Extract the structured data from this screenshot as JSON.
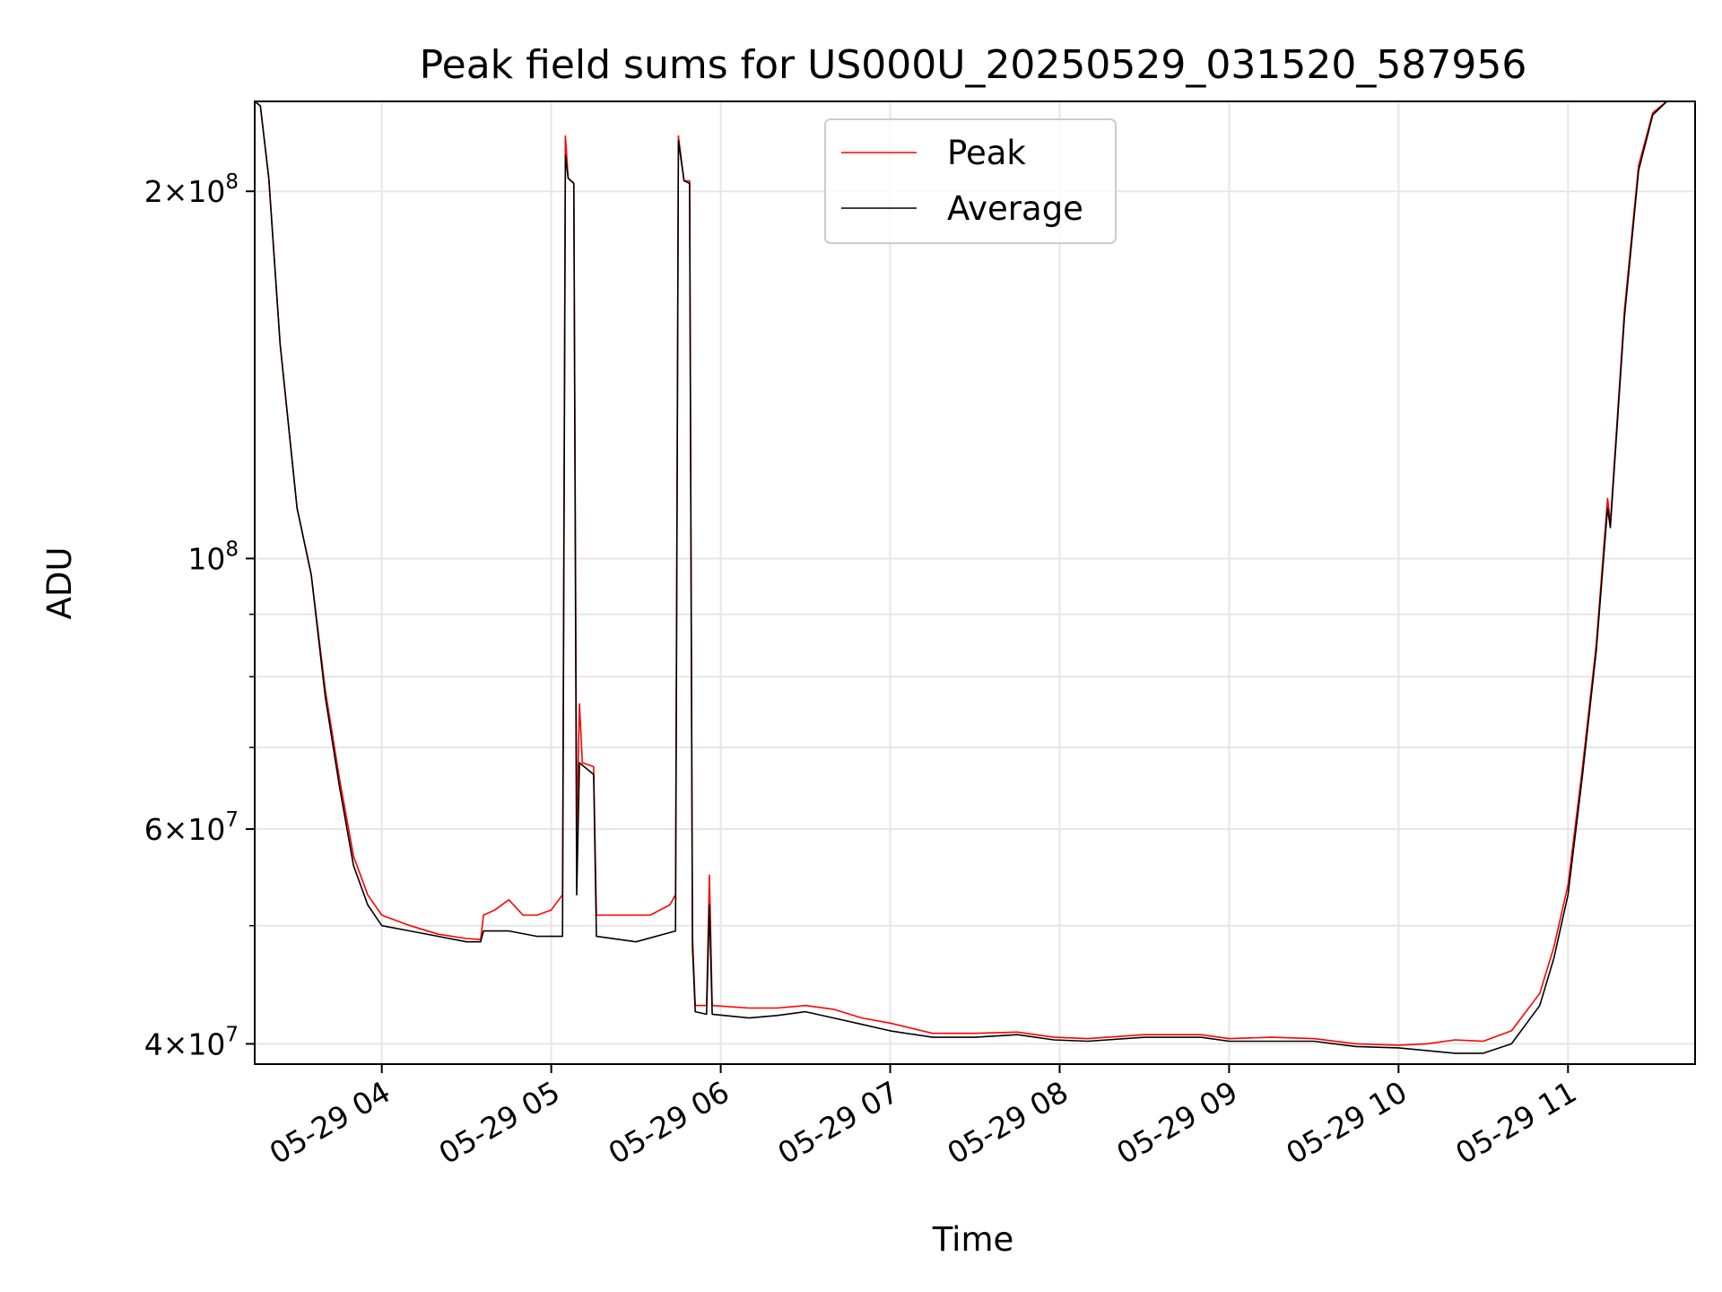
{
  "chart_data": {
    "type": "line",
    "title": "Peak field sums for US000U_20250529_031520_587956",
    "xlabel": "Time",
    "ylabel": "ADU",
    "y_scale": "log",
    "ylim": [
      38500000,
      237000000
    ],
    "xlim": [
      "2025-05-29 03:15",
      "2025-05-29 11:45"
    ],
    "grid": true,
    "legend_position": "top-center",
    "x_ticks": [
      {
        "value": "2025-05-29 04:00",
        "label": "05-29 04"
      },
      {
        "value": "2025-05-29 05:00",
        "label": "05-29 05"
      },
      {
        "value": "2025-05-29 06:00",
        "label": "05-29 06"
      },
      {
        "value": "2025-05-29 07:00",
        "label": "05-29 07"
      },
      {
        "value": "2025-05-29 08:00",
        "label": "05-29 08"
      },
      {
        "value": "2025-05-29 09:00",
        "label": "05-29 09"
      },
      {
        "value": "2025-05-29 10:00",
        "label": "05-29 10"
      },
      {
        "value": "2025-05-29 11:00",
        "label": "05-29 11"
      }
    ],
    "y_ticks": [
      {
        "value": 40000000,
        "mantissa": "4",
        "exponent": "7"
      },
      {
        "value": 60000000,
        "mantissa": "6",
        "exponent": "7"
      },
      {
        "value": 100000000,
        "mantissa": "",
        "exponent": "8"
      },
      {
        "value": 200000000,
        "mantissa": "2",
        "exponent": "8"
      }
    ],
    "y_minor_ticks": [
      50000000,
      70000000,
      80000000,
      90000000
    ],
    "series": [
      {
        "name": "Peak",
        "color": "#ff0000",
        "points": [
          [
            "2025-05-29 03:15",
            237000000
          ],
          [
            "2025-05-29 03:17",
            235000000
          ],
          [
            "2025-05-29 03:20",
            205000000
          ],
          [
            "2025-05-29 03:24",
            150000000
          ],
          [
            "2025-05-29 03:30",
            110000000
          ],
          [
            "2025-05-29 03:35",
            97000000
          ],
          [
            "2025-05-29 03:40",
            78000000
          ],
          [
            "2025-05-29 03:45",
            66000000
          ],
          [
            "2025-05-29 03:50",
            57000000
          ],
          [
            "2025-05-29 03:55",
            53000000
          ],
          [
            "2025-05-29 04:00",
            51000000
          ],
          [
            "2025-05-29 04:10",
            50000000
          ],
          [
            "2025-05-29 04:20",
            49200000
          ],
          [
            "2025-05-29 04:30",
            48800000
          ],
          [
            "2025-05-29 04:35",
            48700000
          ],
          [
            "2025-05-29 04:36",
            51000000
          ],
          [
            "2025-05-29 04:40",
            51500000
          ],
          [
            "2025-05-29 04:45",
            52500000
          ],
          [
            "2025-05-29 04:50",
            51000000
          ],
          [
            "2025-05-29 04:55",
            51000000
          ],
          [
            "2025-05-29 05:00",
            51500000
          ],
          [
            "2025-05-29 05:04",
            53000000
          ],
          [
            "2025-05-29 05:05",
            222000000
          ],
          [
            "2025-05-29 05:06",
            205000000
          ],
          [
            "2025-05-29 05:08",
            203000000
          ],
          [
            "2025-05-29 05:09",
            60000000
          ],
          [
            "2025-05-29 05:10",
            76000000
          ],
          [
            "2025-05-29 05:11",
            68000000
          ],
          [
            "2025-05-29 05:15",
            67500000
          ],
          [
            "2025-05-29 05:16",
            51000000
          ],
          [
            "2025-05-29 05:25",
            51000000
          ],
          [
            "2025-05-29 05:35",
            51000000
          ],
          [
            "2025-05-29 05:42",
            52000000
          ],
          [
            "2025-05-29 05:44",
            53000000
          ],
          [
            "2025-05-29 05:45",
            222000000
          ],
          [
            "2025-05-29 05:47",
            204000000
          ],
          [
            "2025-05-29 05:49",
            204000000
          ],
          [
            "2025-05-29 05:50",
            49000000
          ],
          [
            "2025-05-29 05:51",
            43000000
          ],
          [
            "2025-05-29 05:55",
            43000000
          ],
          [
            "2025-05-29 05:56",
            55000000
          ],
          [
            "2025-05-29 05:57",
            43000000
          ],
          [
            "2025-05-29 06:10",
            42800000
          ],
          [
            "2025-05-29 06:20",
            42800000
          ],
          [
            "2025-05-29 06:30",
            43000000
          ],
          [
            "2025-05-29 06:40",
            42700000
          ],
          [
            "2025-05-29 06:50",
            42000000
          ],
          [
            "2025-05-29 07:00",
            41600000
          ],
          [
            "2025-05-29 07:15",
            40800000
          ],
          [
            "2025-05-29 07:30",
            40800000
          ],
          [
            "2025-05-29 07:45",
            40900000
          ],
          [
            "2025-05-29 07:58",
            40500000
          ],
          [
            "2025-05-29 08:10",
            40400000
          ],
          [
            "2025-05-29 08:30",
            40700000
          ],
          [
            "2025-05-29 08:50",
            40700000
          ],
          [
            "2025-05-29 09:00",
            40400000
          ],
          [
            "2025-05-29 09:15",
            40500000
          ],
          [
            "2025-05-29 09:30",
            40400000
          ],
          [
            "2025-05-29 09:45",
            40000000
          ],
          [
            "2025-05-29 10:00",
            39900000
          ],
          [
            "2025-05-29 10:10",
            40000000
          ],
          [
            "2025-05-29 10:20",
            40300000
          ],
          [
            "2025-05-29 10:30",
            40200000
          ],
          [
            "2025-05-29 10:40",
            41000000
          ],
          [
            "2025-05-29 10:50",
            44000000
          ],
          [
            "2025-05-29 10:55",
            48000000
          ],
          [
            "2025-05-29 11:00",
            54000000
          ],
          [
            "2025-05-29 11:05",
            67000000
          ],
          [
            "2025-05-29 11:10",
            85000000
          ],
          [
            "2025-05-29 11:14",
            112000000
          ],
          [
            "2025-05-29 11:15",
            107000000
          ],
          [
            "2025-05-29 11:20",
            160000000
          ],
          [
            "2025-05-29 11:25",
            210000000
          ],
          [
            "2025-05-29 11:30",
            232000000
          ],
          [
            "2025-05-29 11:35",
            237000000
          ],
          [
            "2025-05-29 11:45",
            237000000
          ]
        ]
      },
      {
        "name": "Average",
        "color": "#000000",
        "points": [
          [
            "2025-05-29 03:15",
            237000000
          ],
          [
            "2025-05-29 03:17",
            235000000
          ],
          [
            "2025-05-29 03:20",
            205000000
          ],
          [
            "2025-05-29 03:24",
            150000000
          ],
          [
            "2025-05-29 03:30",
            110000000
          ],
          [
            "2025-05-29 03:35",
            97000000
          ],
          [
            "2025-05-29 03:40",
            77000000
          ],
          [
            "2025-05-29 03:45",
            65000000
          ],
          [
            "2025-05-29 03:50",
            56000000
          ],
          [
            "2025-05-29 03:55",
            52000000
          ],
          [
            "2025-05-29 04:00",
            50000000
          ],
          [
            "2025-05-29 04:10",
            49500000
          ],
          [
            "2025-05-29 04:20",
            49000000
          ],
          [
            "2025-05-29 04:30",
            48500000
          ],
          [
            "2025-05-29 04:35",
            48500000
          ],
          [
            "2025-05-29 04:36",
            49500000
          ],
          [
            "2025-05-29 04:45",
            49500000
          ],
          [
            "2025-05-29 04:55",
            49000000
          ],
          [
            "2025-05-29 05:04",
            49000000
          ],
          [
            "2025-05-29 05:05",
            214000000
          ],
          [
            "2025-05-29 05:06",
            205000000
          ],
          [
            "2025-05-29 05:08",
            203000000
          ],
          [
            "2025-05-29 05:09",
            53000000
          ],
          [
            "2025-05-29 05:10",
            68000000
          ],
          [
            "2025-05-29 05:15",
            66500000
          ],
          [
            "2025-05-29 05:16",
            49000000
          ],
          [
            "2025-05-29 05:30",
            48500000
          ],
          [
            "2025-05-29 05:44",
            49500000
          ],
          [
            "2025-05-29 05:45",
            220000000
          ],
          [
            "2025-05-29 05:47",
            204000000
          ],
          [
            "2025-05-29 05:49",
            203000000
          ],
          [
            "2025-05-29 05:50",
            48000000
          ],
          [
            "2025-05-29 05:51",
            42500000
          ],
          [
            "2025-05-29 05:55",
            42300000
          ],
          [
            "2025-05-29 05:56",
            52000000
          ],
          [
            "2025-05-29 05:57",
            42300000
          ],
          [
            "2025-05-29 06:10",
            42000000
          ],
          [
            "2025-05-29 06:20",
            42200000
          ],
          [
            "2025-05-29 06:30",
            42500000
          ],
          [
            "2025-05-29 06:40",
            42000000
          ],
          [
            "2025-05-29 06:50",
            41500000
          ],
          [
            "2025-05-29 07:00",
            41000000
          ],
          [
            "2025-05-29 07:15",
            40500000
          ],
          [
            "2025-05-29 07:30",
            40500000
          ],
          [
            "2025-05-29 07:45",
            40700000
          ],
          [
            "2025-05-29 07:58",
            40300000
          ],
          [
            "2025-05-29 08:10",
            40200000
          ],
          [
            "2025-05-29 08:30",
            40500000
          ],
          [
            "2025-05-29 08:50",
            40500000
          ],
          [
            "2025-05-29 09:00",
            40200000
          ],
          [
            "2025-05-29 09:15",
            40200000
          ],
          [
            "2025-05-29 09:30",
            40200000
          ],
          [
            "2025-05-29 09:45",
            39800000
          ],
          [
            "2025-05-29 10:00",
            39700000
          ],
          [
            "2025-05-29 10:10",
            39500000
          ],
          [
            "2025-05-29 10:20",
            39300000
          ],
          [
            "2025-05-29 10:30",
            39300000
          ],
          [
            "2025-05-29 10:40",
            40000000
          ],
          [
            "2025-05-29 10:50",
            43000000
          ],
          [
            "2025-05-29 10:55",
            47000000
          ],
          [
            "2025-05-29 11:00",
            53000000
          ],
          [
            "2025-05-29 11:05",
            66000000
          ],
          [
            "2025-05-29 11:10",
            84000000
          ],
          [
            "2025-05-29 11:14",
            110000000
          ],
          [
            "2025-05-29 11:15",
            106000000
          ],
          [
            "2025-05-29 11:20",
            158000000
          ],
          [
            "2025-05-29 11:25",
            208000000
          ],
          [
            "2025-05-29 11:30",
            231000000
          ],
          [
            "2025-05-29 11:35",
            237000000
          ],
          [
            "2025-05-29 11:45",
            237000000
          ]
        ]
      }
    ]
  }
}
